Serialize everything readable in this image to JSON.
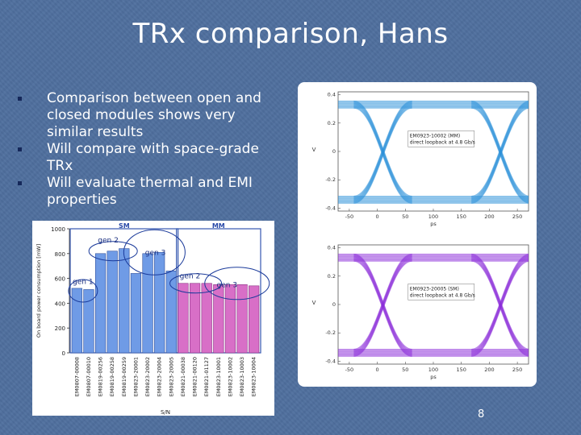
{
  "slide": {
    "title": "TRx comparison, Hans",
    "bullets": [
      "Comparison between open and closed modules shows very similar results",
      "Will compare with space-grade TRx",
      "Will evaluate thermal and EMI properties"
    ],
    "page_number": "8"
  },
  "colors": {
    "background": "#4f6f9e",
    "bullet_mark": "#15285a",
    "sm_bar": "#6f9be6",
    "mm_bar": "#d86fc7",
    "eye_top": "#2a8fd8",
    "eye_bottom": "#8a2bd8"
  },
  "chart_data": [
    {
      "type": "bar",
      "ylabel": "On board power consumption [mW]",
      "xlabel": "S/N",
      "ylim": [
        0,
        1000
      ],
      "yticks": [
        0,
        200,
        400,
        600,
        800,
        1000
      ],
      "groups": [
        {
          "name": "SM",
          "from": 0,
          "to": 8
        },
        {
          "name": "MM",
          "from": 9,
          "to": 15
        }
      ],
      "annotations": [
        "gen 1",
        "gen 2",
        "gen 3",
        "gen 2",
        "gen 3"
      ],
      "categories": [
        "EM0807-00008",
        "EM0807-00010",
        "EM0819-00256",
        "EM0819-00258",
        "EM0819-00259",
        "EM0823-20001",
        "EM0823-20002",
        "EM0823-20004",
        "EM0823-20005",
        "EM0821-00038",
        "EM0821-00120",
        "EM0821-01127",
        "EM0823-10001",
        "EM0823-10002",
        "EM0823-10003",
        "EM0823-10004"
      ],
      "values": [
        520,
        510,
        800,
        820,
        840,
        640,
        800,
        810,
        660,
        560,
        560,
        560,
        550,
        550,
        550,
        540
      ]
    },
    {
      "type": "line",
      "annotation": [
        "EM0923-10002 (MM)",
        "direct loopback at 4.8 Gb/s"
      ],
      "xlabel": "ps",
      "ylabel": "V",
      "xticks": [
        -50,
        0,
        50,
        100,
        150,
        200,
        250
      ],
      "yticks": [
        -0.4,
        -0.2,
        0,
        0.2,
        0.4
      ],
      "ytick_labels": [
        "-0.4",
        "-0.2",
        "0",
        "0.2",
        "0.4"
      ],
      "xlim": [
        -70,
        270
      ],
      "ylim": [
        -0.42,
        0.42
      ]
    },
    {
      "type": "line",
      "annotation": [
        "EM0923-20005 (SM)",
        "direct loopback at 4.8 Gb/s"
      ],
      "xlabel": "ps",
      "ylabel": "V",
      "xticks": [
        -50,
        0,
        50,
        100,
        150,
        200,
        250
      ],
      "yticks": [
        -0.4,
        -0.2,
        0,
        0.2,
        0.4
      ],
      "ytick_labels": [
        "-0.4",
        "-0.2",
        "0",
        "0.2",
        "0.4"
      ],
      "xlim": [
        -70,
        270
      ],
      "ylim": [
        -0.42,
        0.42
      ]
    }
  ]
}
